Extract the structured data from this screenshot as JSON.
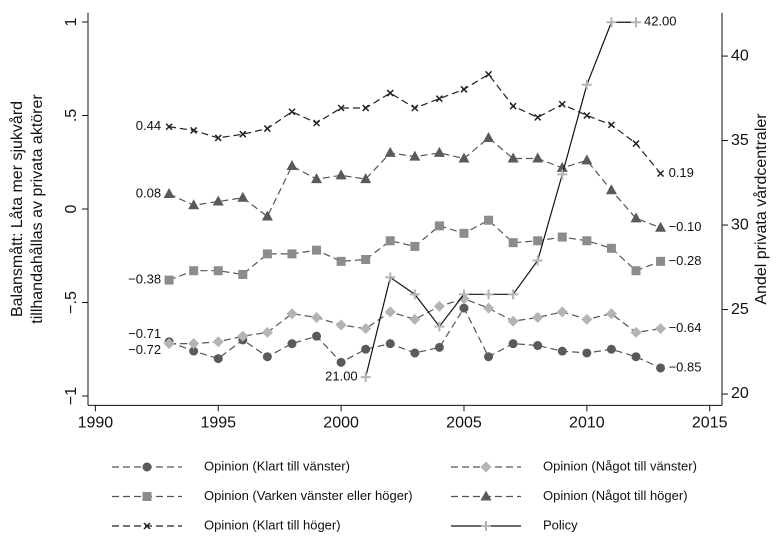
{
  "chart_data": {
    "type": "line",
    "y_title": [
      "Balansmått: Låta mer sjukvård",
      "tillhandahållas av privata aktörer"
    ],
    "y2_title": "Andel privata vårdcentraler",
    "x": [
      1993,
      1994,
      1995,
      1996,
      1997,
      1998,
      1999,
      2000,
      2001,
      2002,
      2003,
      2004,
      2005,
      2006,
      2007,
      2008,
      2009,
      2010,
      2011,
      2012,
      2013
    ],
    "xlim": [
      1989.7,
      2015.5
    ],
    "xticks": [
      1990,
      1995,
      2000,
      2005,
      2010,
      2015
    ],
    "ylim": [
      -1.05,
      1.05
    ],
    "yticks": [
      {
        "value": -1,
        "label": "−1"
      },
      {
        "value": -0.5,
        "label": "−.5"
      },
      0,
      {
        "value": 0.5,
        "label": ".5"
      },
      1
    ],
    "y2lim": [
      19.33,
      42.57
    ],
    "y2ticks": [
      20,
      25,
      30,
      35,
      40
    ],
    "series": [
      {
        "name": "Opinion (Klart till vänster)",
        "color": "#555555",
        "marker": "circle",
        "marker_color": "#5a5a5a",
        "line_style": "dashed",
        "values": [
          -0.71,
          -0.76,
          -0.8,
          -0.7,
          -0.79,
          -0.72,
          -0.68,
          -0.82,
          -0.75,
          -0.72,
          -0.77,
          -0.74,
          -0.53,
          -0.79,
          -0.72,
          -0.73,
          -0.76,
          -0.77,
          -0.75,
          -0.79,
          -0.85
        ],
        "value_labels": [
          "−0.71",
          null,
          null,
          null,
          null,
          null,
          null,
          null,
          null,
          null,
          null,
          null,
          null,
          null,
          null,
          null,
          null,
          null,
          null,
          null,
          "−0.85"
        ]
      },
      {
        "name": "Opinion (Något till vänster)",
        "color": "#555555",
        "marker": "diamond",
        "marker_color": "#b4b4b4",
        "line_style": "dashed",
        "values": [
          -0.72,
          -0.72,
          -0.71,
          -0.68,
          -0.66,
          -0.56,
          -0.58,
          -0.62,
          -0.64,
          -0.55,
          -0.59,
          -0.52,
          -0.48,
          -0.53,
          -0.6,
          -0.58,
          -0.55,
          -0.59,
          -0.56,
          -0.66,
          -0.64
        ],
        "value_labels": [
          "−0.72",
          null,
          null,
          null,
          null,
          null,
          null,
          null,
          null,
          null,
          null,
          null,
          null,
          null,
          null,
          null,
          null,
          null,
          null,
          null,
          "−0.64"
        ]
      },
      {
        "name": "Opinion (Varken vänster eller höger)",
        "color": "#555555",
        "marker": "square",
        "marker_color": "#8c8c8c",
        "line_style": "dashed",
        "values": [
          -0.38,
          -0.33,
          -0.33,
          -0.35,
          -0.24,
          -0.24,
          -0.22,
          -0.28,
          -0.27,
          -0.17,
          -0.2,
          -0.09,
          -0.13,
          -0.06,
          -0.18,
          -0.17,
          -0.15,
          -0.17,
          -0.21,
          -0.33,
          -0.28
        ],
        "value_labels": [
          "−0.38",
          null,
          null,
          null,
          null,
          null,
          null,
          null,
          null,
          null,
          null,
          null,
          null,
          null,
          null,
          null,
          null,
          null,
          null,
          null,
          "−0.28"
        ]
      },
      {
        "name": "Opinion (Något till höger)",
        "color": "#555555",
        "marker": "triangle",
        "marker_color": "#5a5a5a",
        "line_style": "dashed",
        "values": [
          0.08,
          0.02,
          0.04,
          0.06,
          -0.04,
          0.23,
          0.16,
          0.18,
          0.16,
          0.3,
          0.28,
          0.3,
          0.27,
          0.38,
          0.27,
          0.27,
          0.22,
          0.26,
          0.1,
          -0.05,
          -0.1
        ],
        "value_labels": [
          "0.08",
          null,
          null,
          null,
          null,
          null,
          null,
          null,
          null,
          null,
          null,
          null,
          null,
          null,
          null,
          null,
          null,
          null,
          null,
          null,
          "−0.10"
        ]
      },
      {
        "name": "Opinion (Klart till höger)",
        "color": "#222222",
        "marker": "x",
        "marker_color": "#222222",
        "line_style": "dashed",
        "values": [
          0.44,
          0.42,
          0.38,
          0.4,
          0.43,
          0.52,
          0.46,
          0.54,
          0.54,
          0.62,
          0.54,
          0.59,
          0.64,
          0.72,
          0.55,
          0.49,
          0.56,
          0.5,
          0.45,
          0.35,
          0.19
        ],
        "value_labels": [
          "0.44",
          null,
          null,
          null,
          null,
          null,
          null,
          null,
          null,
          null,
          null,
          null,
          null,
          null,
          null,
          null,
          null,
          null,
          null,
          null,
          "0.19"
        ]
      },
      {
        "name": "Policy",
        "color": "#111111",
        "marker": "plus",
        "marker_color": "#b4b4b4",
        "line_style": "solid",
        "axis": "y2",
        "values": [
          null,
          null,
          null,
          null,
          null,
          null,
          null,
          null,
          21.0,
          26.9,
          25.9,
          24.0,
          25.9,
          25.9,
          25.9,
          27.9,
          33.0,
          38.3,
          42.0,
          42.0,
          null
        ],
        "value_labels": [
          null,
          null,
          null,
          null,
          null,
          null,
          null,
          null,
          "21.00",
          null,
          null,
          null,
          null,
          null,
          null,
          null,
          null,
          null,
          null,
          "42.00",
          null
        ]
      }
    ]
  }
}
